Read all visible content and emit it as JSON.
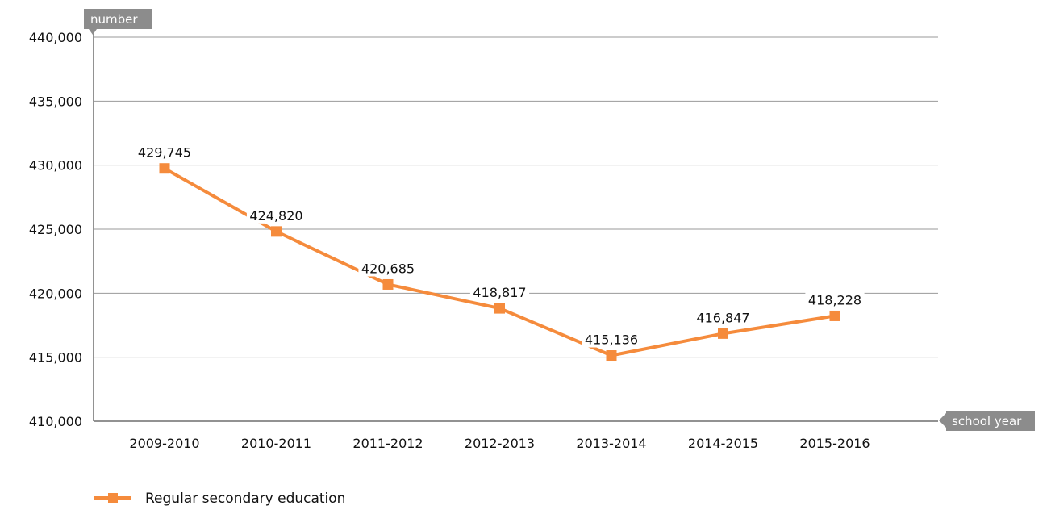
{
  "chart_data": {
    "type": "line",
    "title": "",
    "ylabel": "number",
    "xlabel": "school year",
    "ylim": [
      410000,
      440000
    ],
    "yticks": [
      410000,
      415000,
      420000,
      425000,
      430000,
      435000,
      440000
    ],
    "ytick_labels": [
      "410,000",
      "415,000",
      "420,000",
      "425,000",
      "430,000",
      "435,000",
      "440,000"
    ],
    "categories": [
      "2009-2010",
      "2010-2011",
      "2011-2012",
      "2012-2013",
      "2013-2014",
      "2014-2015",
      "2015-2016"
    ],
    "grid": true,
    "legend_position": "bottom-left",
    "series": [
      {
        "name": "Regular secondary education",
        "color": "#f58b3c",
        "values": [
          429745,
          424820,
          420685,
          418817,
          415136,
          416847,
          418228
        ],
        "labels": [
          "429,745",
          "424,820",
          "420,685",
          "418,817",
          "415,136",
          "416,847",
          "418,228"
        ]
      }
    ]
  }
}
